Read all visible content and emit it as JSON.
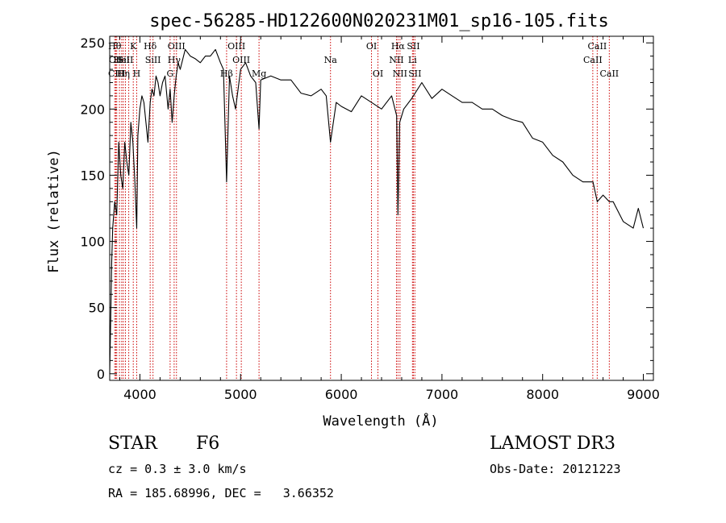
{
  "chart_data": {
    "type": "line",
    "title": "spec-56285-HD122600N020231M01_sp16-105.fits",
    "xlabel": "Wavelength (Å)",
    "ylabel": "Flux (relative)",
    "xlim": [
      3700,
      9100
    ],
    "ylim": [
      -5,
      255
    ],
    "xticks": [
      4000,
      5000,
      6000,
      7000,
      8000,
      9000
    ],
    "xtick_labels": [
      "4000",
      "5000",
      "6000",
      "7000",
      "8000",
      "9000"
    ],
    "yticks": [
      0,
      50,
      100,
      150,
      200,
      250
    ],
    "ytick_labels": [
      "0",
      "50",
      "100",
      "150",
      "200",
      "250"
    ],
    "line_color": "#000000",
    "marker_color": "#cc0000",
    "series": [
      {
        "name": "spectrum",
        "x": [
          3700,
          3710,
          3720,
          3730,
          3750,
          3770,
          3790,
          3810,
          3830,
          3850,
          3870,
          3890,
          3910,
          3930,
          3950,
          3968,
          3980,
          4000,
          4020,
          4040,
          4060,
          4080,
          4102,
          4120,
          4140,
          4160,
          4180,
          4200,
          4225,
          4250,
          4280,
          4300,
          4320,
          4340,
          4360,
          4380,
          4400,
          4450,
          4500,
          4550,
          4600,
          4650,
          4700,
          4750,
          4800,
          4830,
          4861,
          4890,
          4920,
          4950,
          5000,
          5050,
          5100,
          5150,
          5183,
          5200,
          5300,
          5400,
          5500,
          5600,
          5700,
          5800,
          5850,
          5893,
          5950,
          6000,
          6100,
          6200,
          6300,
          6400,
          6500,
          6550,
          6563,
          6580,
          6620,
          6700,
          6800,
          6900,
          7000,
          7100,
          7200,
          7300,
          7400,
          7500,
          7600,
          7700,
          7800,
          7900,
          8000,
          8100,
          8200,
          8300,
          8400,
          8500,
          8542,
          8600,
          8662,
          8700,
          8800,
          8900,
          8950,
          9000
        ],
        "y": [
          0,
          40,
          85,
          110,
          130,
          120,
          175,
          150,
          140,
          175,
          160,
          150,
          190,
          175,
          145,
          110,
          180,
          200,
          210,
          205,
          190,
          175,
          205,
          215,
          210,
          225,
          220,
          210,
          220,
          225,
          200,
          215,
          190,
          210,
          225,
          235,
          230,
          245,
          240,
          238,
          235,
          240,
          240,
          245,
          235,
          230,
          145,
          225,
          210,
          200,
          230,
          235,
          225,
          220,
          185,
          222,
          225,
          222,
          222,
          212,
          210,
          215,
          210,
          175,
          205,
          202,
          198,
          210,
          205,
          200,
          210,
          195,
          120,
          190,
          200,
          208,
          220,
          208,
          215,
          210,
          205,
          205,
          200,
          200,
          195,
          192,
          190,
          178,
          175,
          165,
          160,
          150,
          145,
          145,
          130,
          135,
          130,
          130,
          115,
          110,
          125,
          110
        ]
      }
    ],
    "line_markers": [
      {
        "wl": 3750,
        "label": "Hθ",
        "row": 1
      },
      {
        "wl": 3760,
        "label": "CII",
        "row": 2
      },
      {
        "wl": 3770,
        "label": "CIII",
        "row": 3
      },
      {
        "wl": 3797,
        "label": "",
        "row": 0
      },
      {
        "wl": 3819,
        "label": "HeI",
        "row": 2
      },
      {
        "wl": 3835,
        "label": "Hη",
        "row": 3
      },
      {
        "wl": 3856,
        "label": "SiII",
        "row": 2
      },
      {
        "wl": 3889,
        "label": "",
        "row": 0
      },
      {
        "wl": 3934,
        "label": "K",
        "row": 1
      },
      {
        "wl": 3968,
        "label": "H",
        "row": 3
      },
      {
        "wl": 4102,
        "label": "Hδ",
        "row": 1
      },
      {
        "wl": 4130,
        "label": "SiII",
        "row": 2
      },
      {
        "wl": 4300,
        "label": "G",
        "row": 3
      },
      {
        "wl": 4340,
        "label": "Hγ",
        "row": 2
      },
      {
        "wl": 4363,
        "label": "OIII",
        "row": 1
      },
      {
        "wl": 4861,
        "label": "Hβ",
        "row": 3
      },
      {
        "wl": 4959,
        "label": "OIII",
        "row": 1
      },
      {
        "wl": 5007,
        "label": "OIII",
        "row": 2
      },
      {
        "wl": 5183,
        "label": "Mg",
        "row": 3
      },
      {
        "wl": 5893,
        "label": "Na",
        "row": 2
      },
      {
        "wl": 6300,
        "label": "OI",
        "row": 1
      },
      {
        "wl": 6364,
        "label": "OI",
        "row": 3
      },
      {
        "wl": 6548,
        "label": "NII",
        "row": 2
      },
      {
        "wl": 6563,
        "label": "Hα",
        "row": 1
      },
      {
        "wl": 6583,
        "label": "NII",
        "row": 3
      },
      {
        "wl": 6707,
        "label": "Li",
        "row": 2
      },
      {
        "wl": 6716,
        "label": "SII",
        "row": 1
      },
      {
        "wl": 6731,
        "label": "SII",
        "row": 3
      },
      {
        "wl": 8498,
        "label": "CaII",
        "row": 2
      },
      {
        "wl": 8542,
        "label": "CaII",
        "row": 1
      },
      {
        "wl": 8662,
        "label": "CaII",
        "row": 3
      }
    ]
  },
  "info": {
    "object_class": "STAR",
    "subclass": "F6",
    "survey": "LAMOST DR3",
    "velocity": "cz = 0.3 ± 3.0 km/s",
    "obs_date": "Obs-Date: 20121223",
    "coords": "RA = 185.68996, DEC =   3.66352"
  }
}
